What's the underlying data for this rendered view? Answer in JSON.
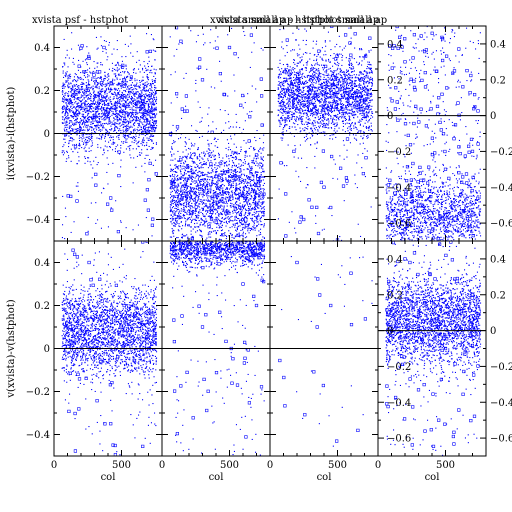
{
  "chart_data": [
    {
      "type": "scatter",
      "row": 0,
      "col": 0,
      "title": "xvista psf - hstphot",
      "ylabel": "i(xvista)-i(hstphot)",
      "xlabel": "",
      "xlim": [
        0,
        800
      ],
      "ylim": [
        -0.5,
        0.5
      ],
      "x_ticks": [],
      "y_ticks": [
        -0.4,
        -0.2,
        0,
        0.2,
        0.4
      ],
      "y_tick_side": "left",
      "color": "#0000ff",
      "density_model": {
        "center": 0.12,
        "spread": 0.1,
        "core_count": 2400,
        "outlier_count": 160,
        "x_range": [
          60,
          760
        ]
      },
      "sample_points": [
        [
          120,
          0.15
        ],
        [
          300,
          0.08
        ],
        [
          520,
          0.22
        ],
        [
          700,
          0.05
        ],
        [
          420,
          -0.3
        ],
        [
          260,
          0.35
        ]
      ]
    },
    {
      "type": "scatter",
      "row": 0,
      "col": 1,
      "title": "xvista small ap - hstphot small ap",
      "ylabel": "",
      "xlabel": "",
      "xlim": [
        0,
        800
      ],
      "ylim": [
        -0.5,
        0.5
      ],
      "x_ticks": [],
      "y_ticks": [
        -0.4,
        -0.2,
        0,
        0.2,
        0.4
      ],
      "y_tick_side": "none",
      "color": "#0000ff",
      "density_model": {
        "center": -0.28,
        "spread": 0.12,
        "core_count": 2400,
        "outlier_count": 200,
        "x_range": [
          60,
          760
        ]
      },
      "sample_points": [
        [
          150,
          -0.3
        ],
        [
          400,
          -0.2
        ],
        [
          600,
          -0.4
        ],
        [
          700,
          -0.1
        ],
        [
          300,
          0.25
        ],
        [
          500,
          0.4
        ]
      ]
    },
    {
      "type": "scatter",
      "row": 0,
      "col": 2,
      "title": "xvista small ap - hstphot small ap",
      "ylabel": "",
      "xlabel": "",
      "xlim": [
        0,
        800
      ],
      "ylim": [
        -0.5,
        0.5
      ],
      "x_ticks": [],
      "y_ticks": [
        -0.4,
        -0.2,
        0,
        0.2,
        0.4
      ],
      "y_tick_side": "none",
      "color": "#0000ff",
      "density_model": {
        "center": 0.17,
        "spread": 0.09,
        "core_count": 2400,
        "outlier_count": 160,
        "x_range": [
          60,
          760
        ]
      },
      "sample_points": [
        [
          130,
          0.2
        ],
        [
          350,
          0.1
        ],
        [
          560,
          0.25
        ],
        [
          720,
          0.12
        ],
        [
          400,
          -0.25
        ],
        [
          250,
          -0.4
        ]
      ]
    },
    {
      "type": "scatter",
      "row": 0,
      "col": 3,
      "title": "",
      "ylabel": "",
      "xlabel": "",
      "xlim": [
        0,
        800
      ],
      "ylim": [
        -0.7,
        0.5
      ],
      "x_ticks": [],
      "y_ticks": [
        -0.6,
        -0.4,
        -0.2,
        0,
        0.2,
        0.4
      ],
      "y_tick_side": "both",
      "color": "#0000ff",
      "density_model": {
        "center": -0.55,
        "spread": 0.1,
        "core_count": 1300,
        "outlier_count": 500,
        "x_range": [
          60,
          760
        ]
      },
      "sample_points": [
        [
          100,
          -0.6
        ],
        [
          300,
          -0.5
        ],
        [
          500,
          -0.3
        ],
        [
          700,
          -0.2
        ],
        [
          450,
          0.1
        ],
        [
          200,
          0.3
        ]
      ]
    },
    {
      "type": "scatter",
      "row": 1,
      "col": 0,
      "title": "",
      "ylabel": "v(xvista)-v(hstphot)",
      "xlabel": "col",
      "xlim": [
        0,
        800
      ],
      "ylim": [
        -0.5,
        0.5
      ],
      "x_ticks": [
        0,
        500
      ],
      "y_ticks": [
        -0.4,
        -0.2,
        0,
        0.2,
        0.4
      ],
      "y_tick_side": "left",
      "color": "#0000ff",
      "density_model": {
        "center": 0.08,
        "spread": 0.1,
        "core_count": 2400,
        "outlier_count": 160,
        "x_range": [
          60,
          760
        ]
      },
      "sample_points": [
        [
          120,
          0.1
        ],
        [
          300,
          0.05
        ],
        [
          520,
          0.2
        ],
        [
          700,
          0.0
        ],
        [
          420,
          -0.35
        ],
        [
          260,
          0.4
        ]
      ]
    },
    {
      "type": "scatter",
      "row": 1,
      "col": 1,
      "title": "",
      "ylabel": "",
      "xlabel": "col",
      "xlim": [
        0,
        800
      ],
      "ylim": [
        -0.5,
        0.5
      ],
      "x_ticks": [
        0,
        500
      ],
      "y_ticks": [
        -0.4,
        -0.2,
        0,
        0.2,
        0.4
      ],
      "y_tick_side": "none",
      "color": "#0000ff",
      "density_model": {
        "center": 0.47,
        "spread": 0.04,
        "core_count": 1400,
        "outlier_count": 160,
        "x_range": [
          60,
          760
        ]
      },
      "sample_points": [
        [
          150,
          0.45
        ],
        [
          400,
          0.48
        ],
        [
          600,
          0.3
        ],
        [
          700,
          0.2
        ],
        [
          300,
          0.1
        ]
      ]
    },
    {
      "type": "scatter",
      "row": 1,
      "col": 2,
      "title": "",
      "ylabel": "",
      "xlabel": "col",
      "xlim": [
        0,
        800
      ],
      "ylim": [
        -0.5,
        0.5
      ],
      "x_ticks": [
        0,
        500
      ],
      "y_ticks": [
        -0.4,
        -0.2,
        0,
        0.2,
        0.4
      ],
      "y_tick_side": "none",
      "color": "#0000ff",
      "density_model": {
        "center": 0.3,
        "spread": 0.15,
        "core_count": 0,
        "outlier_count": 40,
        "x_range": [
          60,
          760
        ]
      },
      "sample_points": [
        [
          200,
          0.4
        ],
        [
          450,
          0.2
        ],
        [
          600,
          0.35
        ],
        [
          350,
          0.1
        ]
      ]
    },
    {
      "type": "scatter",
      "row": 1,
      "col": 3,
      "title": "",
      "ylabel": "",
      "xlabel": "col",
      "xlim": [
        0,
        800
      ],
      "ylim": [
        -0.7,
        0.5
      ],
      "x_ticks": [
        0,
        500
      ],
      "y_ticks": [
        -0.6,
        -0.4,
        -0.2,
        0,
        0.2,
        0.4
      ],
      "y_tick_side": "both",
      "color": "#0000ff",
      "density_model": {
        "center": 0.05,
        "spread": 0.12,
        "core_count": 2400,
        "outlier_count": 260,
        "x_range": [
          60,
          760
        ]
      },
      "sample_points": [
        [
          100,
          0.0
        ],
        [
          300,
          0.1
        ],
        [
          500,
          -0.1
        ],
        [
          700,
          0.2
        ],
        [
          450,
          -0.5
        ],
        [
          200,
          0.4
        ]
      ]
    }
  ]
}
